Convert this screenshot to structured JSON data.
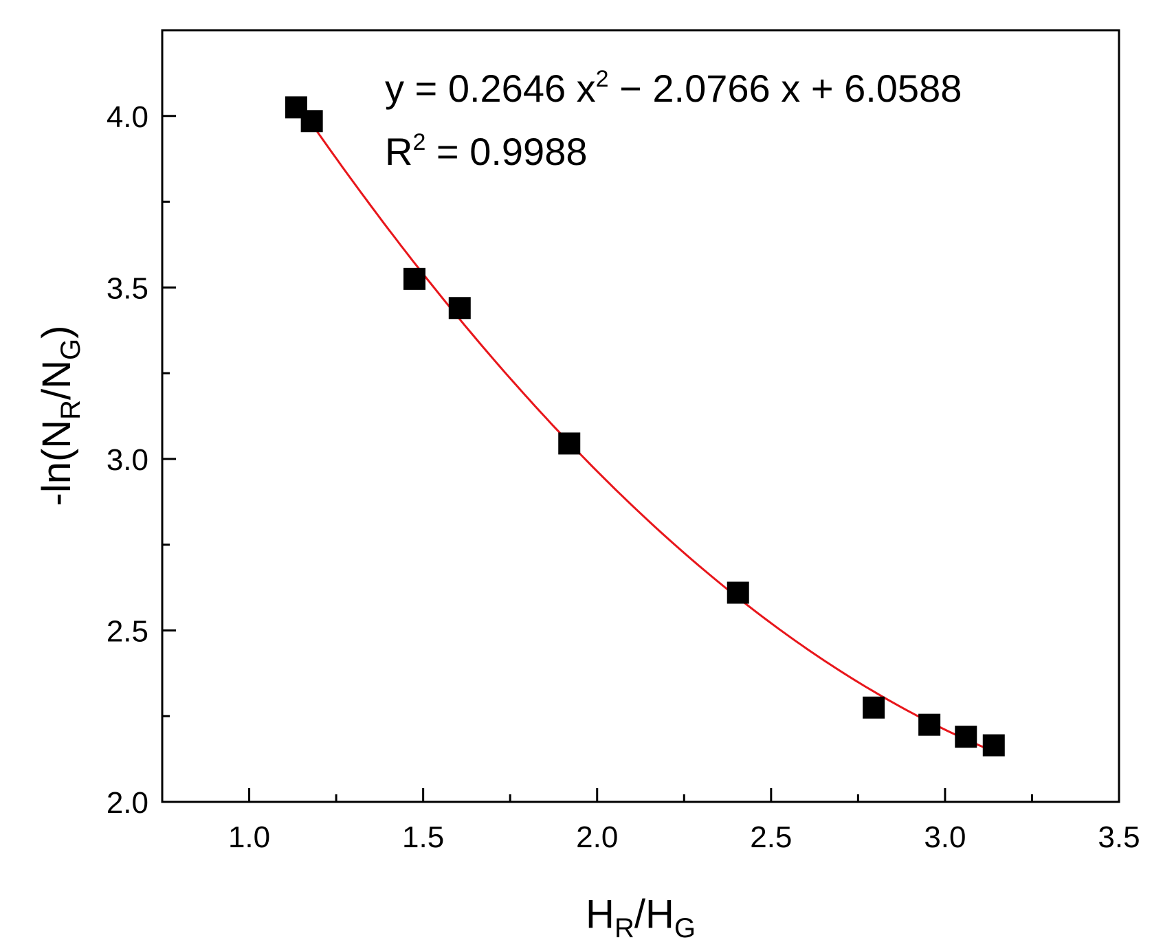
{
  "chart_data": {
    "type": "scatter",
    "title": "",
    "xlabel": {
      "main": "H",
      "sub1": "R",
      "mid": "/H",
      "sub2": "G"
    },
    "ylabel": {
      "main": "-ln(N",
      "sub1": "R",
      "mid": "/N",
      "sub2": "G",
      "end": ")"
    },
    "xlim": [
      0.75,
      3.5
    ],
    "ylim": [
      2.0,
      4.25
    ],
    "xticks": [
      1.0,
      1.5,
      2.0,
      2.5,
      3.0,
      3.5
    ],
    "xtick_labels": [
      "1.0",
      "1.5",
      "2.0",
      "2.5",
      "3.0",
      "3.5"
    ],
    "yticks": [
      2.0,
      2.5,
      3.0,
      3.5,
      4.0
    ],
    "ytick_labels": [
      "2.0",
      "2.5",
      "3.0",
      "3.5",
      "4.0"
    ],
    "x_minor_step": 0.25,
    "y_minor_step": 0.25,
    "grid": false,
    "series": [
      {
        "marker": "square",
        "color": "#000000",
        "x": [
          1.135,
          1.18,
          1.475,
          1.605,
          1.92,
          2.405,
          2.795,
          2.955,
          3.06,
          3.14
        ],
        "y": [
          4.025,
          3.985,
          3.525,
          3.44,
          3.045,
          2.61,
          2.275,
          2.225,
          2.19,
          2.165
        ]
      }
    ],
    "fit": {
      "type": "quadratic",
      "coefficients": [
        0.2646,
        -2.0766,
        6.0588
      ],
      "x_range": [
        1.135,
        3.14
      ],
      "color": "#e8161b"
    },
    "annotation": {
      "equation": {
        "part1": "y = 0.2646 x",
        "sup": "2",
        "part2": " − 2.0766 x + 6.0588"
      },
      "r2": {
        "part1": "R",
        "sup": "2",
        "part2": " = 0.9988"
      }
    }
  }
}
